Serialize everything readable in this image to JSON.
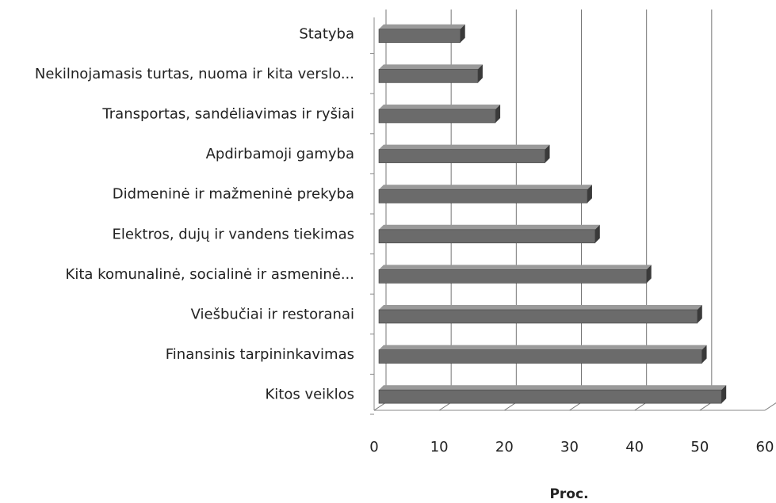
{
  "chart_data": {
    "type": "bar",
    "orientation": "horizontal",
    "categories": [
      "Statyba",
      "Nekilnojamasis turtas, nuoma ir kita verslo...",
      "Transportas, sandėliavimas ir ryšiai",
      "Apdirbamoji gamyba",
      "Didmeninė ir mažmeninė prekyba",
      "Elektros, dujų ir vandens tiekimas",
      "Kita komunalinė, socialinė ir asmeninė...",
      "Viešbučiai ir restoranai",
      "Finansinis tarpininkavimas",
      "Kitos veiklos"
    ],
    "values": [
      12.5,
      15.2,
      17.9,
      25.5,
      32,
      33.2,
      41.1,
      48.9,
      49.6,
      52.6
    ],
    "color": "#6b6b6b",
    "x_label": "Proc.",
    "xlim": [
      0,
      60
    ],
    "xticks": [
      0,
      10,
      20,
      30,
      40,
      50,
      60
    ],
    "grid": true
  }
}
